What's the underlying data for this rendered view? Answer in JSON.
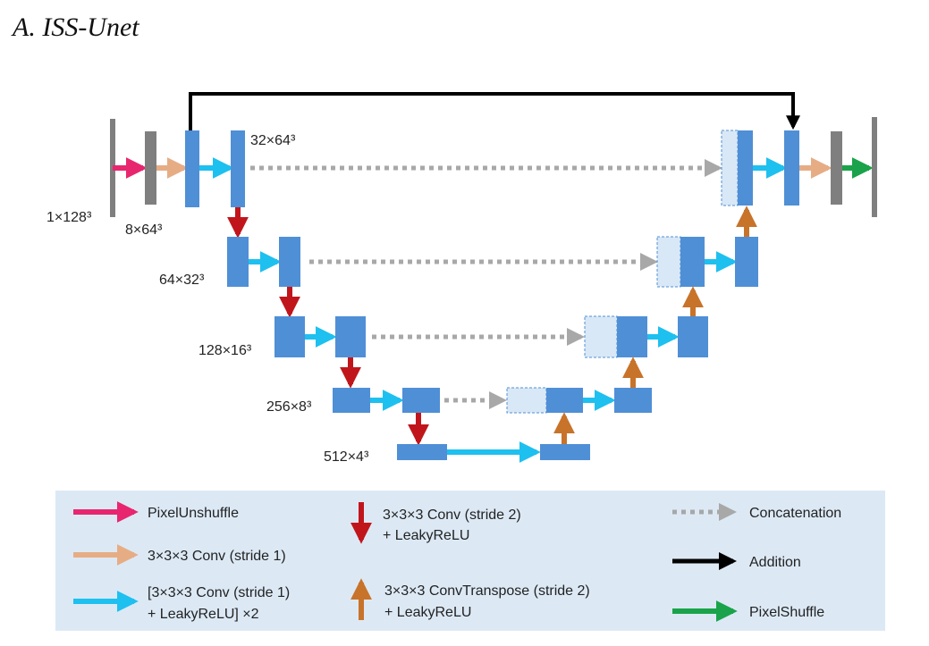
{
  "title": "A. ISS-Unet",
  "colors": {
    "block": "#4f8fd6",
    "block_light": "#d9e8f6",
    "gray_bar": "#7f7f7f",
    "pixel_unshuffle": "#e8266f",
    "conv_stride1": "#e6ad85",
    "conv_leaky_x2": "#1ec0ef",
    "conv_stride2": "#c0161b",
    "conv_transpose": "#c8732a",
    "concatenation": "#a8a8a8",
    "addition": "#000000",
    "pixel_shuffle": "#1aa34a",
    "legend_bg": "#dce9f5"
  },
  "dimensions": {
    "input": "1×128³",
    "pixel_unshuffle_out": "8×64³",
    "level1": "32×64³",
    "level2": "64×32³",
    "level3": "128×16³",
    "level4": "256×8³",
    "level5": "512×4³"
  },
  "legend": {
    "pixel_unshuffle": "PixelUnshuffle",
    "conv_stride1": "3×3×3 Conv (stride 1)",
    "conv_leaky_x2": [
      "[3×3×3 Conv (stride 1)",
      "+ LeakyReLU] ×2"
    ],
    "conv_stride2": [
      "3×3×3 Conv (stride 2)",
      "+ LeakyReLU"
    ],
    "conv_transpose": [
      "3×3×3 ConvTranspose (stride 2)",
      "+ LeakyReLU"
    ],
    "concatenation": "Concatenation",
    "addition": "Addition",
    "pixel_shuffle": "PixelShuffle"
  }
}
